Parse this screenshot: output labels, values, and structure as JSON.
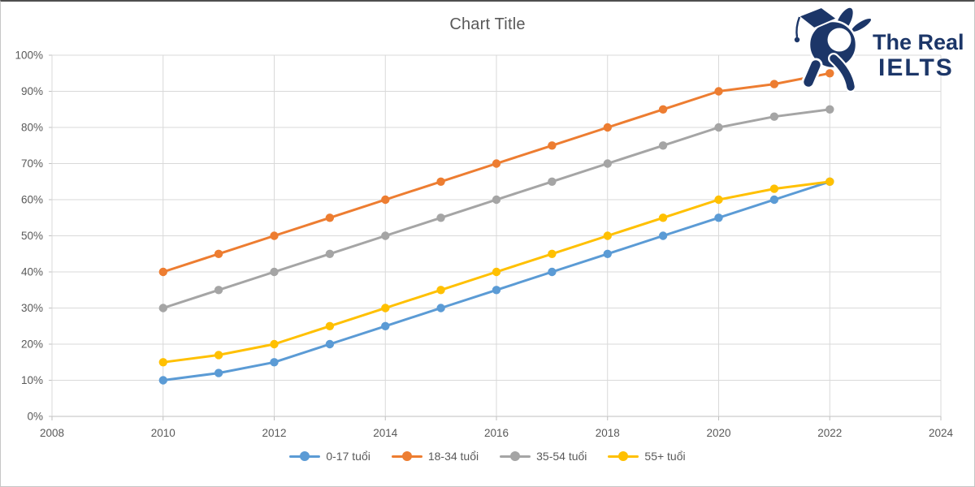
{
  "title": "Chart Title",
  "logo": {
    "line1": "The Real",
    "line2": "IELTS",
    "color": "#1c3668",
    "icon": "graduate-rabbit-icon"
  },
  "chart_data": {
    "type": "line",
    "title": "Chart Title",
    "xlabel": "",
    "ylabel": "",
    "x": [
      2010,
      2011,
      2012,
      2013,
      2014,
      2015,
      2016,
      2017,
      2018,
      2019,
      2020,
      2021,
      2022
    ],
    "series": [
      {
        "name": "0-17 tuổi",
        "color": "#5B9BD5",
        "values": [
          10,
          12,
          15,
          20,
          25,
          30,
          35,
          40,
          45,
          50,
          55,
          60,
          65
        ]
      },
      {
        "name": "18-34 tuổi",
        "color": "#ED7D31",
        "values": [
          40,
          45,
          50,
          55,
          60,
          65,
          70,
          75,
          80,
          85,
          90,
          92,
          95
        ]
      },
      {
        "name": "35-54 tuổi",
        "color": "#A5A5A5",
        "values": [
          30,
          35,
          40,
          45,
          50,
          55,
          60,
          65,
          70,
          75,
          80,
          83,
          85
        ]
      },
      {
        "name": "55+ tuổi",
        "color": "#FFC000",
        "values": [
          15,
          17,
          20,
          25,
          30,
          35,
          40,
          45,
          50,
          55,
          60,
          63,
          65
        ]
      }
    ],
    "x_axis": {
      "min": 2008,
      "max": 2024,
      "ticks": [
        2008,
        2010,
        2012,
        2014,
        2016,
        2018,
        2020,
        2022,
        2024
      ]
    },
    "y_axis": {
      "min": 0,
      "max": 100,
      "ticks": [
        0,
        10,
        20,
        30,
        40,
        50,
        60,
        70,
        80,
        90,
        100
      ],
      "tick_suffix": "%"
    },
    "grid": true,
    "legend_position": "bottom",
    "grid_color": "#D9D9D9",
    "axis_color": "#BFBFBF",
    "text_color": "#595959"
  }
}
